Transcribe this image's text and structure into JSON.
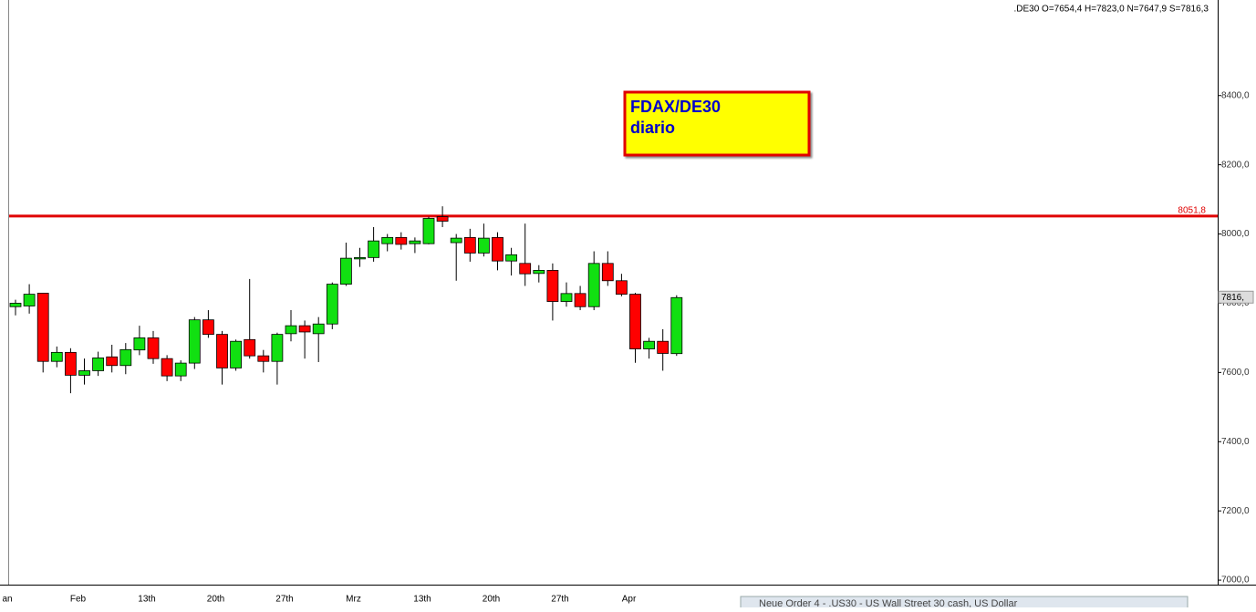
{
  "chart_data": {
    "type": "candlestick",
    "header": ".DE30 O=7654,4 H=7823,0 N=7647,9 S=7816,3",
    "annotation": {
      "title": "FDAX/DE30",
      "subtitle": "diario"
    },
    "categories": [
      "an",
      null,
      null,
      null,
      null,
      "Feb",
      null,
      null,
      null,
      null,
      "13th",
      null,
      null,
      null,
      null,
      "20th",
      null,
      null,
      null,
      null,
      "27th",
      null,
      null,
      null,
      null,
      "Mrz",
      null,
      null,
      null,
      null,
      "13th",
      null,
      null,
      null,
      null,
      "20th",
      null,
      null,
      null,
      null,
      "27th",
      null,
      null,
      null,
      null,
      "Apr",
      null,
      null,
      null
    ],
    "open": [
      7790,
      7792,
      7829,
      7632,
      7658,
      7592,
      7605,
      7645,
      7620,
      7665,
      7700,
      7640,
      7590,
      7627,
      7752,
      7710,
      7613,
      7695,
      7648,
      7632,
      7712,
      7735,
      7712,
      7740,
      7855,
      7928,
      7932,
      7972,
      7990,
      7972,
      7972,
      8050,
      7975,
      7990,
      7945,
      7990,
      7922,
      7915,
      7886,
      7895,
      7805,
      7828,
      7790,
      7915,
      7865,
      7826,
      7668,
      7690,
      7654.4
    ],
    "high": [
      7810,
      7855,
      7830,
      7675,
      7670,
      7640,
      7660,
      7680,
      7685,
      7735,
      7720,
      7650,
      7635,
      7760,
      7780,
      7720,
      7695,
      7870,
      7665,
      7715,
      7780,
      7750,
      7760,
      7860,
      7975,
      7960,
      8020,
      8000,
      8005,
      7990,
      8050,
      8080,
      8000,
      8015,
      8030,
      8005,
      7960,
      8030,
      7910,
      7915,
      7860,
      7850,
      7950,
      7950,
      7885,
      7830,
      7700,
      7725,
      7823.0
    ],
    "low": [
      7765,
      7770,
      7600,
      7615,
      7540,
      7565,
      7590,
      7600,
      7595,
      7650,
      7625,
      7575,
      7575,
      7610,
      7700,
      7565,
      7605,
      7640,
      7600,
      7565,
      7690,
      7640,
      7630,
      7725,
      7850,
      7905,
      7920,
      7950,
      7955,
      7945,
      7970,
      8020,
      7865,
      7920,
      7935,
      7895,
      7880,
      7850,
      7860,
      7750,
      7790,
      7780,
      7780,
      7850,
      7820,
      7628,
      7640,
      7605,
      7647.9
    ],
    "close": [
      7800,
      7826,
      7632,
      7658,
      7592,
      7605,
      7642,
      7620,
      7666,
      7700,
      7640,
      7590,
      7627,
      7752,
      7710,
      7613,
      7690,
      7648,
      7632,
      7710,
      7735,
      7717,
      7740,
      7855,
      7930,
      7932,
      7980,
      7990,
      7970,
      7980,
      8045,
      8037,
      7988,
      7945,
      7988,
      7922,
      7940,
      7885,
      7895,
      7805,
      7828,
      7790,
      7915,
      7865,
      7826,
      7668,
      7690,
      7655,
      7816.3
    ],
    "up_color": "#11e011",
    "down_color": "#ff0000",
    "ylim": [
      6987,
      8676
    ],
    "yticks": [
      {
        "value": 7000,
        "label": "7000,0"
      },
      {
        "value": 7200,
        "label": "7200,0"
      },
      {
        "value": 7400,
        "label": "7400,0"
      },
      {
        "value": 7600,
        "label": "7600,0"
      },
      {
        "value": 7800,
        "label": "7800,0"
      },
      {
        "value": 8000,
        "label": "8000,0"
      },
      {
        "value": 8200,
        "label": "8200,0"
      },
      {
        "value": 8400,
        "label": "8400,0"
      }
    ],
    "hline": {
      "value": 8051.8,
      "label": "8051,8",
      "color": "#e00000"
    },
    "last_price": {
      "value": 7816.3,
      "label": "7816,"
    },
    "taskbar": "Neue Order 4 - .US30 - US Wall Street 30 cash, US Dollar"
  }
}
